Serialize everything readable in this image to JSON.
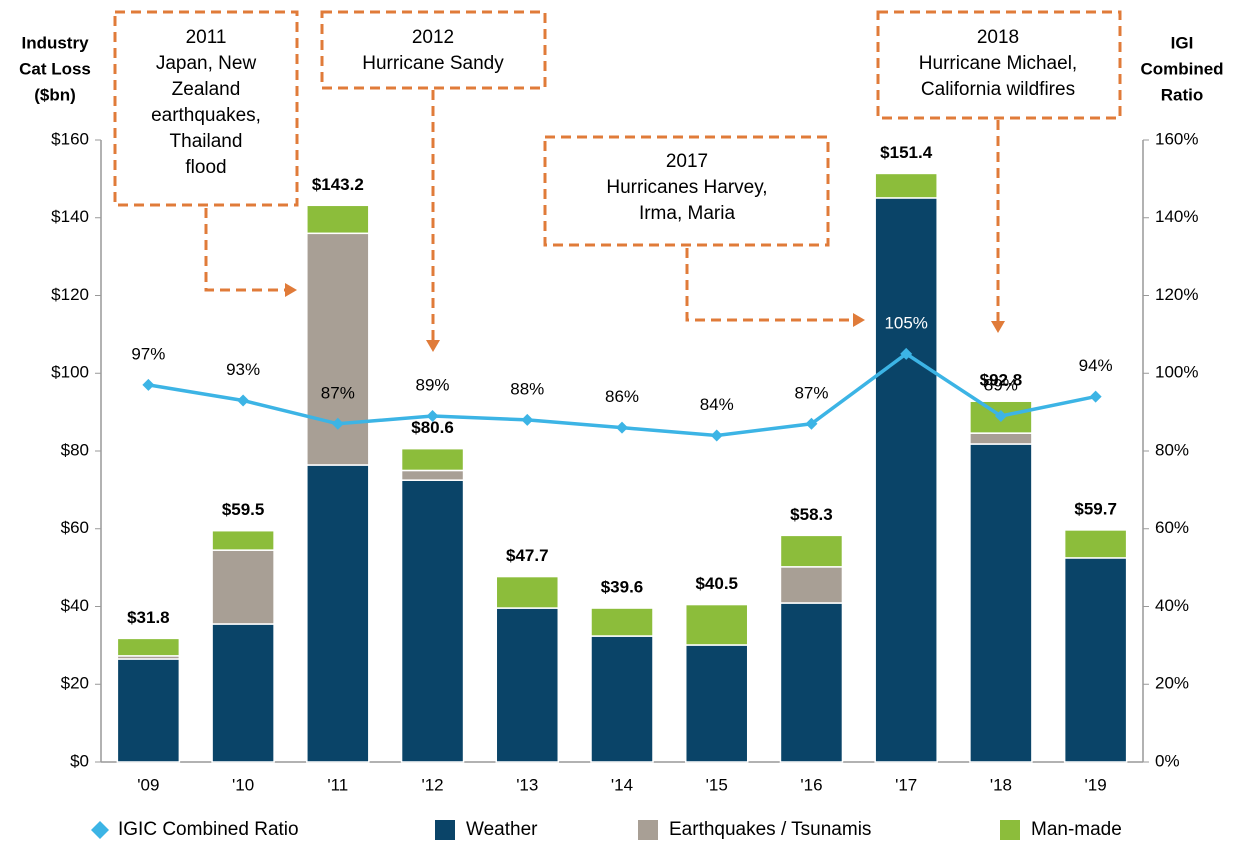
{
  "chart_data": {
    "type": "bar",
    "y_label": [
      "Industry",
      "Cat Loss",
      "($bn)"
    ],
    "y2_label": [
      "IGI",
      "Combined",
      "Ratio"
    ],
    "categories": [
      "'09",
      "'10",
      "'11",
      "'12",
      "'13",
      "'14",
      "'15",
      "'16",
      "'17",
      "'18",
      "'19"
    ],
    "stacked": true,
    "series": [
      {
        "name": "Weather",
        "color": "#0a4468",
        "values": [
          26.5,
          35.5,
          76.4,
          72.5,
          39.6,
          32.4,
          30.1,
          40.9,
          145.1,
          81.8,
          52.5
        ]
      },
      {
        "name": "Earthquakes / Tsunamis",
        "color": "#a89f95",
        "values": [
          0.8,
          19.0,
          59.6,
          2.5,
          0,
          0,
          0,
          9.3,
          0,
          2.8,
          0
        ]
      },
      {
        "name": "Man-made",
        "color": "#8cbd3b",
        "values": [
          4.5,
          5.0,
          7.2,
          5.6,
          8.1,
          7.2,
          10.4,
          8.1,
          6.3,
          8.2,
          7.2
        ]
      },
      {
        "name": "IGIC Combined Ratio",
        "type": "line",
        "axis": "y2",
        "color": "#3cb4e5",
        "values": [
          97,
          93,
          87,
          89,
          88,
          86,
          84,
          87,
          105,
          89,
          94
        ],
        "value_labels": [
          "97%",
          "93%",
          "87%",
          "89%",
          "88%",
          "86%",
          "84%",
          "87%",
          "105%",
          "89%",
          "94%"
        ]
      }
    ],
    "totals": [
      31.8,
      59.5,
      143.2,
      80.6,
      47.7,
      39.6,
      40.5,
      58.3,
      151.4,
      92.8,
      59.7
    ],
    "total_labels": [
      "$31.8",
      "$59.5",
      "$143.2",
      "$80.6",
      "$47.7",
      "$39.6",
      "$40.5",
      "$58.3",
      "$151.4",
      "$92.8",
      "$59.7"
    ],
    "ylim": [
      0,
      160
    ],
    "yticks": [
      {
        "value": 0,
        "label": "$0"
      },
      {
        "value": 20,
        "label": "$20"
      },
      {
        "value": 40,
        "label": "$40"
      },
      {
        "value": 60,
        "label": "$60"
      },
      {
        "value": 80,
        "label": "$80"
      },
      {
        "value": 100,
        "label": "$100"
      },
      {
        "value": 120,
        "label": "$120"
      },
      {
        "value": 140,
        "label": "$140"
      },
      {
        "value": 160,
        "label": "$160"
      }
    ],
    "y2lim": [
      0,
      160
    ],
    "y2ticks": [
      {
        "value": 0,
        "label": "0%"
      },
      {
        "value": 20,
        "label": "20%"
      },
      {
        "value": 40,
        "label": "40%"
      },
      {
        "value": 60,
        "label": "60%"
      },
      {
        "value": 80,
        "label": "80%"
      },
      {
        "value": 100,
        "label": "100%"
      },
      {
        "value": 120,
        "label": "120%"
      },
      {
        "value": 140,
        "label": "140%"
      },
      {
        "value": 160,
        "label": "160%"
      }
    ],
    "legend": "bottom",
    "annotations": [
      {
        "lines": [
          "2011",
          "Japan, New",
          "Zealand",
          "earthquakes,",
          "Thailand",
          "flood"
        ]
      },
      {
        "lines": [
          "2012",
          "Hurricane Sandy"
        ]
      },
      {
        "lines": [
          "2017",
          "Hurricanes Harvey,",
          "Irma, Maria"
        ]
      },
      {
        "lines": [
          "2018",
          "Hurricane Michael,",
          "California wildfires"
        ]
      }
    ]
  }
}
